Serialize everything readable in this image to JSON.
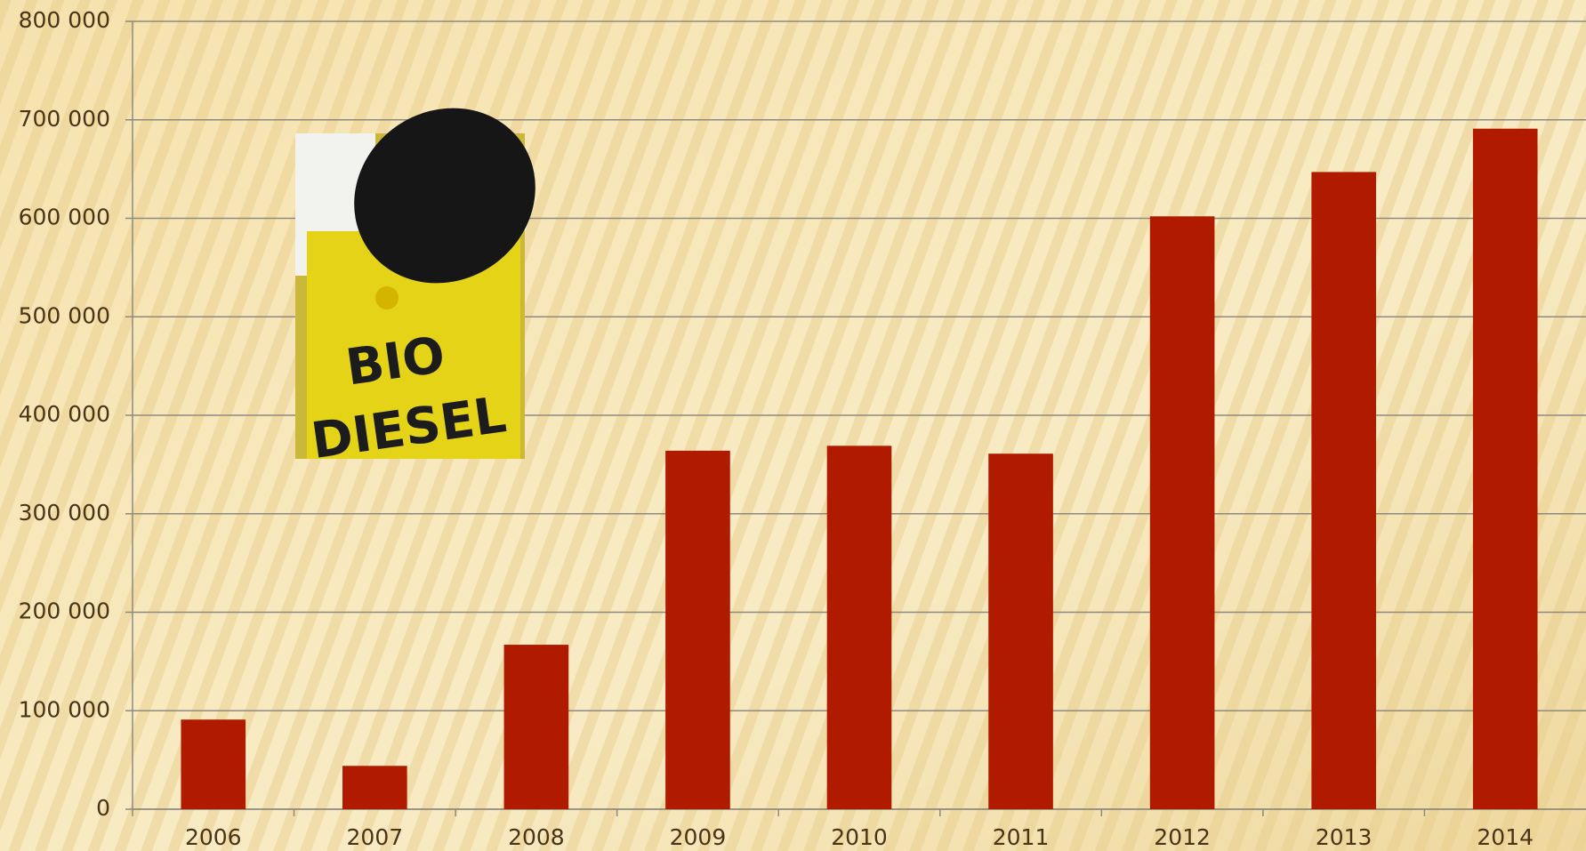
{
  "chart_data": {
    "type": "bar",
    "categories": [
      "2006",
      "2007",
      "2008",
      "2009",
      "2010",
      "2011",
      "2012",
      "2013",
      "2014"
    ],
    "values": [
      91000,
      44000,
      167000,
      364000,
      369000,
      361000,
      602000,
      647000,
      691000
    ],
    "color": "#b01b00",
    "ylim": [
      0,
      800000
    ],
    "yticks": [
      0,
      {
        "value": 100000,
        "label": "100 000"
      },
      {
        "value": 200000,
        "label": "200 000"
      },
      {
        "value": 300000,
        "label": "300 000"
      },
      {
        "value": 400000,
        "label": "400 000"
      },
      {
        "value": 500000,
        "label": "500 000"
      },
      {
        "value": 600000,
        "label": "600 000"
      },
      {
        "value": 700000,
        "label": "700 000"
      },
      {
        "value": 800000,
        "label": "800 000"
      }
    ],
    "grid": true,
    "annotations": [
      "BIO",
      "DIESEL"
    ]
  }
}
